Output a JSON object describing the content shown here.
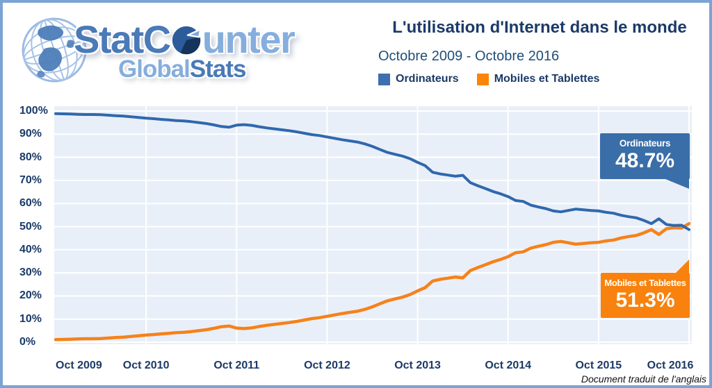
{
  "frame": {
    "border_color": "#7ba3d4",
    "background": "#ffffff"
  },
  "logo": {
    "part_stat": "Stat",
    "part_c": "C",
    "part_unter": "unter",
    "part_global": "Global",
    "part_stats": "Stats",
    "colors": {
      "primary": "#4a7ab7",
      "light": "#85aedd",
      "pie_mid": "#2d5c9b",
      "pie_dark": "#16335c",
      "pie_wedge": "#7fa9dc"
    }
  },
  "header": {
    "title": "L'utilisation d'Internet dans le monde",
    "subtitle": "Octobre 2009 - Octobre 2016",
    "legend": [
      {
        "label": "Ordinateurs",
        "color": "#3e6fae"
      },
      {
        "label": "Mobiles et Tablettes",
        "color": "#fb8509"
      }
    ]
  },
  "chart_data": {
    "type": "line",
    "title": "L'utilisation d'Internet dans le monde",
    "subtitle": "Octobre 2009 - Octobre 2016",
    "x_interval": "monthly",
    "x_start": "Oct 2009",
    "x_end": "Oct 2016",
    "x_tick_labels": [
      "Oct 2009",
      "Oct 2010",
      "Oct 2011",
      "Oct 2012",
      "Oct 2013",
      "Oct 2014",
      "Oct 2015",
      "Oct 2016"
    ],
    "y_tick_labels": [
      "0%",
      "10%",
      "20%",
      "30%",
      "40%",
      "50%",
      "60%",
      "70%",
      "80%",
      "90%",
      "100%"
    ],
    "ylim": [
      0,
      100
    ],
    "grid": true,
    "plot_background": "#e9eff8",
    "gridline_color": "#ffffff",
    "series": [
      {
        "name": "Ordinateurs",
        "color": "#2f68ad",
        "values": [
          98.9,
          98.8,
          98.7,
          98.6,
          98.5,
          98.5,
          98.4,
          98.2,
          98.0,
          97.8,
          97.5,
          97.2,
          96.9,
          96.7,
          96.4,
          96.2,
          95.9,
          95.7,
          95.4,
          95.0,
          94.6,
          94.0,
          93.3,
          93.0,
          93.9,
          94.1,
          93.8,
          93.2,
          92.7,
          92.3,
          91.9,
          91.5,
          91.0,
          90.4,
          89.8,
          89.4,
          88.8,
          88.2,
          87.6,
          87.1,
          86.6,
          85.8,
          84.7,
          83.4,
          82.1,
          81.3,
          80.5,
          79.4,
          77.8,
          76.4,
          73.5,
          72.8,
          72.3,
          71.8,
          72.2,
          69.0,
          67.7,
          66.5,
          65.2,
          64.2,
          63.0,
          61.3,
          60.9,
          59.3,
          58.5,
          57.8,
          56.8,
          56.4,
          57.0,
          57.6,
          57.3,
          57.0,
          56.8,
          56.2,
          55.8,
          54.9,
          54.3,
          53.8,
          52.7,
          51.3,
          53.4,
          50.9,
          50.5,
          50.6,
          48.7
        ]
      },
      {
        "name": "Mobiles et Tablettes",
        "color": "#f6821a",
        "values": [
          1.1,
          1.2,
          1.3,
          1.4,
          1.5,
          1.5,
          1.6,
          1.8,
          2.0,
          2.2,
          2.5,
          2.8,
          3.1,
          3.3,
          3.6,
          3.8,
          4.1,
          4.3,
          4.6,
          5.0,
          5.4,
          6.0,
          6.7,
          7.0,
          6.1,
          5.9,
          6.2,
          6.8,
          7.3,
          7.7,
          8.1,
          8.5,
          9.0,
          9.6,
          10.2,
          10.6,
          11.2,
          11.8,
          12.4,
          12.9,
          13.4,
          14.2,
          15.3,
          16.6,
          17.9,
          18.7,
          19.5,
          20.6,
          22.2,
          23.6,
          26.5,
          27.2,
          27.7,
          28.2,
          27.8,
          31.0,
          32.3,
          33.5,
          34.8,
          35.8,
          37.0,
          38.7,
          39.1,
          40.7,
          41.5,
          42.2,
          43.2,
          43.6,
          43.0,
          42.4,
          42.7,
          43.0,
          43.2,
          43.8,
          44.2,
          45.1,
          45.7,
          46.2,
          47.3,
          48.7,
          46.6,
          49.1,
          49.5,
          49.4,
          51.3
        ]
      }
    ],
    "annotations": [
      {
        "label": "Ordinateurs",
        "value": "48.7%",
        "color": "#3a6ea8"
      },
      {
        "label": "Mobiles et Tablettes",
        "value": "51.3%",
        "color": "#f8820d"
      }
    ],
    "legend_position": "top"
  },
  "footer": {
    "note": "Document traduit de l'anglais"
  }
}
